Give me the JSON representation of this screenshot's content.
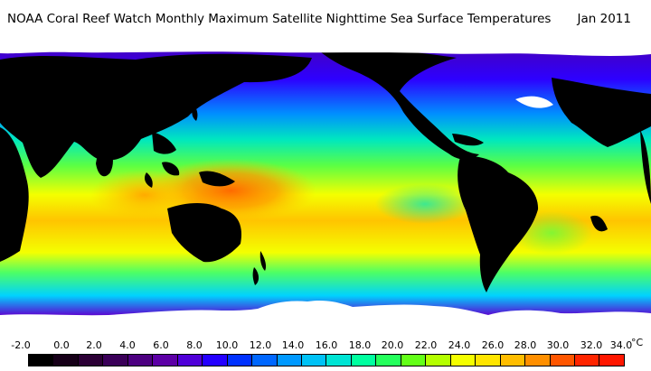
{
  "title": "NOAA Coral Reef Watch Monthly Maximum Satellite Nighttime Sea Surface Temperatures",
  "date": "Jan 2011",
  "unit": "°C",
  "scale": {
    "labels": [
      "-2.0",
      "0.0",
      "2.0",
      "4.0",
      "6.0",
      "8.0",
      "10.0",
      "12.0",
      "14.0",
      "16.0",
      "18.0",
      "20.0",
      "22.0",
      "24.0",
      "26.0",
      "28.0",
      "30.0",
      "32.0",
      "34.0"
    ],
    "colors": [
      "#000000",
      "#160018",
      "#2b0035",
      "#3a0058",
      "#4c0080",
      "#5c00a5",
      "#4f00d8",
      "#2400ff",
      "#0031ff",
      "#0067ff",
      "#0099ff",
      "#00c2f6",
      "#00e4d4",
      "#00ff9f",
      "#24ff5c",
      "#63ff18",
      "#b4ff00",
      "#f4ff00",
      "#ffe500",
      "#ffbd00",
      "#ff8f00",
      "#ff5600",
      "#ff2500",
      "#ff1700"
    ]
  },
  "map": {
    "land_color": "#000000",
    "ice_color": "#ffffff",
    "sst_colors": {
      "polar": "#4a00b4",
      "subpolar": "#2d00ff",
      "cool": "#008fff",
      "mild": "#00e8be",
      "warm_temperate": "#5cff43",
      "subtropical": "#f4ff00",
      "tropical": "#ffc400",
      "warm_pool": "#ff6a00"
    }
  }
}
